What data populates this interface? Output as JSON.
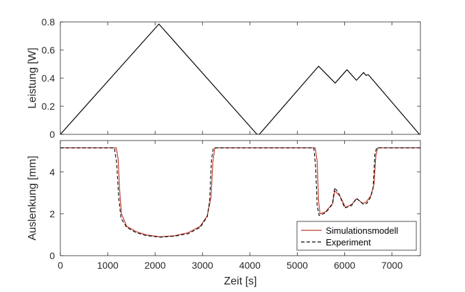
{
  "chart_data": [
    {
      "type": "line",
      "title": "",
      "xlabel": "",
      "ylabel": "Leistung [W]",
      "xlim": [
        0,
        7600
      ],
      "ylim": [
        0,
        0.8
      ],
      "x_ticks": [
        0,
        1000,
        2000,
        3000,
        4000,
        5000,
        6000,
        7000
      ],
      "y_ticks": [
        "0",
        "0.2",
        "0.4",
        "0.6",
        "0.8"
      ],
      "y_tick_values": [
        0,
        0.2,
        0.4,
        0.6,
        0.8
      ],
      "grid": false,
      "series": [
        {
          "color": "#000000",
          "style": "solid",
          "points": [
            [
              0,
              0
            ],
            [
              2080,
              0.785
            ],
            [
              4150,
              0
            ],
            [
              4200,
              0
            ],
            [
              5450,
              0.485
            ],
            [
              5800,
              0.365
            ],
            [
              6050,
              0.46
            ],
            [
              6250,
              0.385
            ],
            [
              6400,
              0.44
            ],
            [
              6450,
              0.42
            ],
            [
              6500,
              0.425
            ],
            [
              7580,
              0
            ]
          ]
        }
      ]
    },
    {
      "type": "line",
      "title": "",
      "xlabel": "Zeit [s]",
      "ylabel": "Auslenkung [mm]",
      "xlim": [
        0,
        7600
      ],
      "ylim": [
        0,
        5.5
      ],
      "x_ticks": [
        "0",
        "1000",
        "2000",
        "3000",
        "4000",
        "5000",
        "6000",
        "7000"
      ],
      "x_tick_values": [
        0,
        1000,
        2000,
        3000,
        4000,
        5000,
        6000,
        7000
      ],
      "y_ticks": [
        "0",
        "2",
        "4"
      ],
      "y_tick_values": [
        0,
        2,
        4
      ],
      "grid": false,
      "legend_position": "bottom-right",
      "series": [
        {
          "name": "Simulationsmodell",
          "color": "#c0392b",
          "style": "solid",
          "points": [
            [
              0,
              5.15
            ],
            [
              1180,
              5.15
            ],
            [
              1220,
              4.6
            ],
            [
              1250,
              3.2
            ],
            [
              1290,
              2.0
            ],
            [
              1400,
              1.4
            ],
            [
              1600,
              1.15
            ],
            [
              1800,
              1.0
            ],
            [
              2100,
              0.9
            ],
            [
              2400,
              0.95
            ],
            [
              2700,
              1.1
            ],
            [
              2950,
              1.4
            ],
            [
              3100,
              1.9
            ],
            [
              3180,
              2.8
            ],
            [
              3220,
              4.5
            ],
            [
              3260,
              5.15
            ],
            [
              5380,
              5.15
            ],
            [
              5420,
              4.5
            ],
            [
              5450,
              2.6
            ],
            [
              5480,
              2.0
            ],
            [
              5600,
              2.1
            ],
            [
              5750,
              2.5
            ],
            [
              5790,
              3.1
            ],
            [
              5900,
              2.85
            ],
            [
              6020,
              2.3
            ],
            [
              6150,
              2.45
            ],
            [
              6250,
              2.7
            ],
            [
              6300,
              2.65
            ],
            [
              6380,
              2.5
            ],
            [
              6450,
              2.55
            ],
            [
              6550,
              2.85
            ],
            [
              6620,
              3.4
            ],
            [
              6660,
              4.8
            ],
            [
              6700,
              5.15
            ],
            [
              7600,
              5.15
            ]
          ]
        },
        {
          "name": "Experiment",
          "color": "#000000",
          "style": "dashed",
          "points": [
            [
              0,
              5.15
            ],
            [
              1140,
              5.15
            ],
            [
              1190,
              4.4
            ],
            [
              1230,
              2.8
            ],
            [
              1280,
              1.8
            ],
            [
              1400,
              1.35
            ],
            [
              1600,
              1.1
            ],
            [
              1800,
              0.97
            ],
            [
              2100,
              0.88
            ],
            [
              2400,
              0.93
            ],
            [
              2700,
              1.05
            ],
            [
              2950,
              1.35
            ],
            [
              3100,
              1.85
            ],
            [
              3150,
              2.6
            ],
            [
              3190,
              4.6
            ],
            [
              3230,
              5.15
            ],
            [
              5350,
              5.15
            ],
            [
              5390,
              4.2
            ],
            [
              5420,
              2.4
            ],
            [
              5460,
              1.92
            ],
            [
              5600,
              2.05
            ],
            [
              5740,
              2.45
            ],
            [
              5790,
              3.25
            ],
            [
              5880,
              2.95
            ],
            [
              6000,
              2.28
            ],
            [
              6150,
              2.4
            ],
            [
              6250,
              2.75
            ],
            [
              6320,
              2.6
            ],
            [
              6400,
              2.45
            ],
            [
              6470,
              2.5
            ],
            [
              6550,
              2.8
            ],
            [
              6600,
              3.2
            ],
            [
              6640,
              4.9
            ],
            [
              6680,
              5.15
            ],
            [
              7600,
              5.15
            ]
          ]
        }
      ]
    }
  ]
}
